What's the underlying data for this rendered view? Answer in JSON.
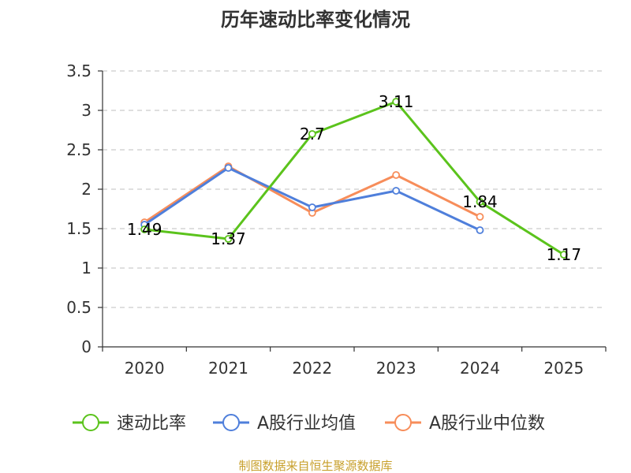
{
  "chart_data": {
    "type": "line",
    "title": "历年速动比率变化情况",
    "categories": [
      "2020",
      "2021",
      "2022",
      "2023",
      "2024",
      "2025"
    ],
    "ylim": [
      0,
      3.5
    ],
    "yticks": [
      "0",
      "0.5",
      "1",
      "1.5",
      "2",
      "2.5",
      "3",
      "3.5"
    ],
    "ytick_values": [
      0,
      0.5,
      1,
      1.5,
      2,
      2.5,
      3,
      3.5
    ],
    "grid": true,
    "legend_position": "bottom",
    "series": [
      {
        "name": "速动比率",
        "color": "#5bc31c",
        "values": [
          1.49,
          1.37,
          2.7,
          3.11,
          1.84,
          1.17
        ],
        "labels": [
          "1.49",
          "1.37",
          "2.7",
          "3.11",
          "1.84",
          "1.17"
        ]
      },
      {
        "name": "A股行业均值",
        "color": "#4f7fdb",
        "values": [
          1.55,
          2.27,
          1.77,
          1.98,
          1.48,
          null
        ]
      },
      {
        "name": "A股行业中位数",
        "color": "#f78d5a",
        "values": [
          1.58,
          2.29,
          1.7,
          2.18,
          1.65,
          null
        ]
      }
    ]
  },
  "source_text": "制图数据来自恒生聚源数据库"
}
